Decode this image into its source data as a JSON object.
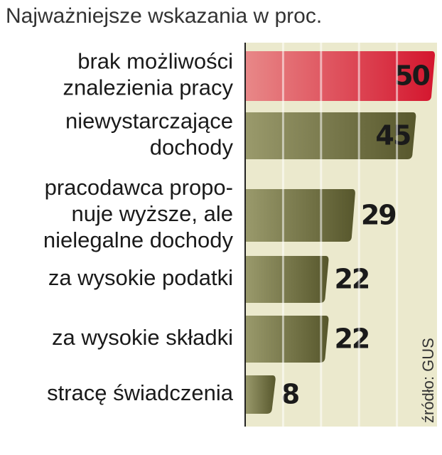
{
  "chart_data": {
    "type": "bar",
    "orientation": "horizontal",
    "title": "Najważniejsze wskazania w proc.",
    "categories": [
      [
        "brak możliwości",
        "znalezienia pracy"
      ],
      [
        "niewystarczające",
        "dochody"
      ],
      [
        "pracodawca propo-",
        "nuje wyższe, ale",
        "nielegalne dochody"
      ],
      [
        "za wysokie podatki"
      ],
      [
        "za wysokie składki"
      ],
      [
        "stracę świadczenia"
      ]
    ],
    "values": [
      50,
      45,
      29,
      22,
      22,
      8
    ],
    "colors": [
      "#d8283a",
      "#66663a",
      "#66663a",
      "#66663a",
      "#66663a",
      "#66663a"
    ],
    "xlim": [
      0,
      50
    ],
    "xticks": [
      0,
      10,
      20,
      30,
      40,
      50
    ],
    "grid": true,
    "source": "źródło: GUS"
  }
}
